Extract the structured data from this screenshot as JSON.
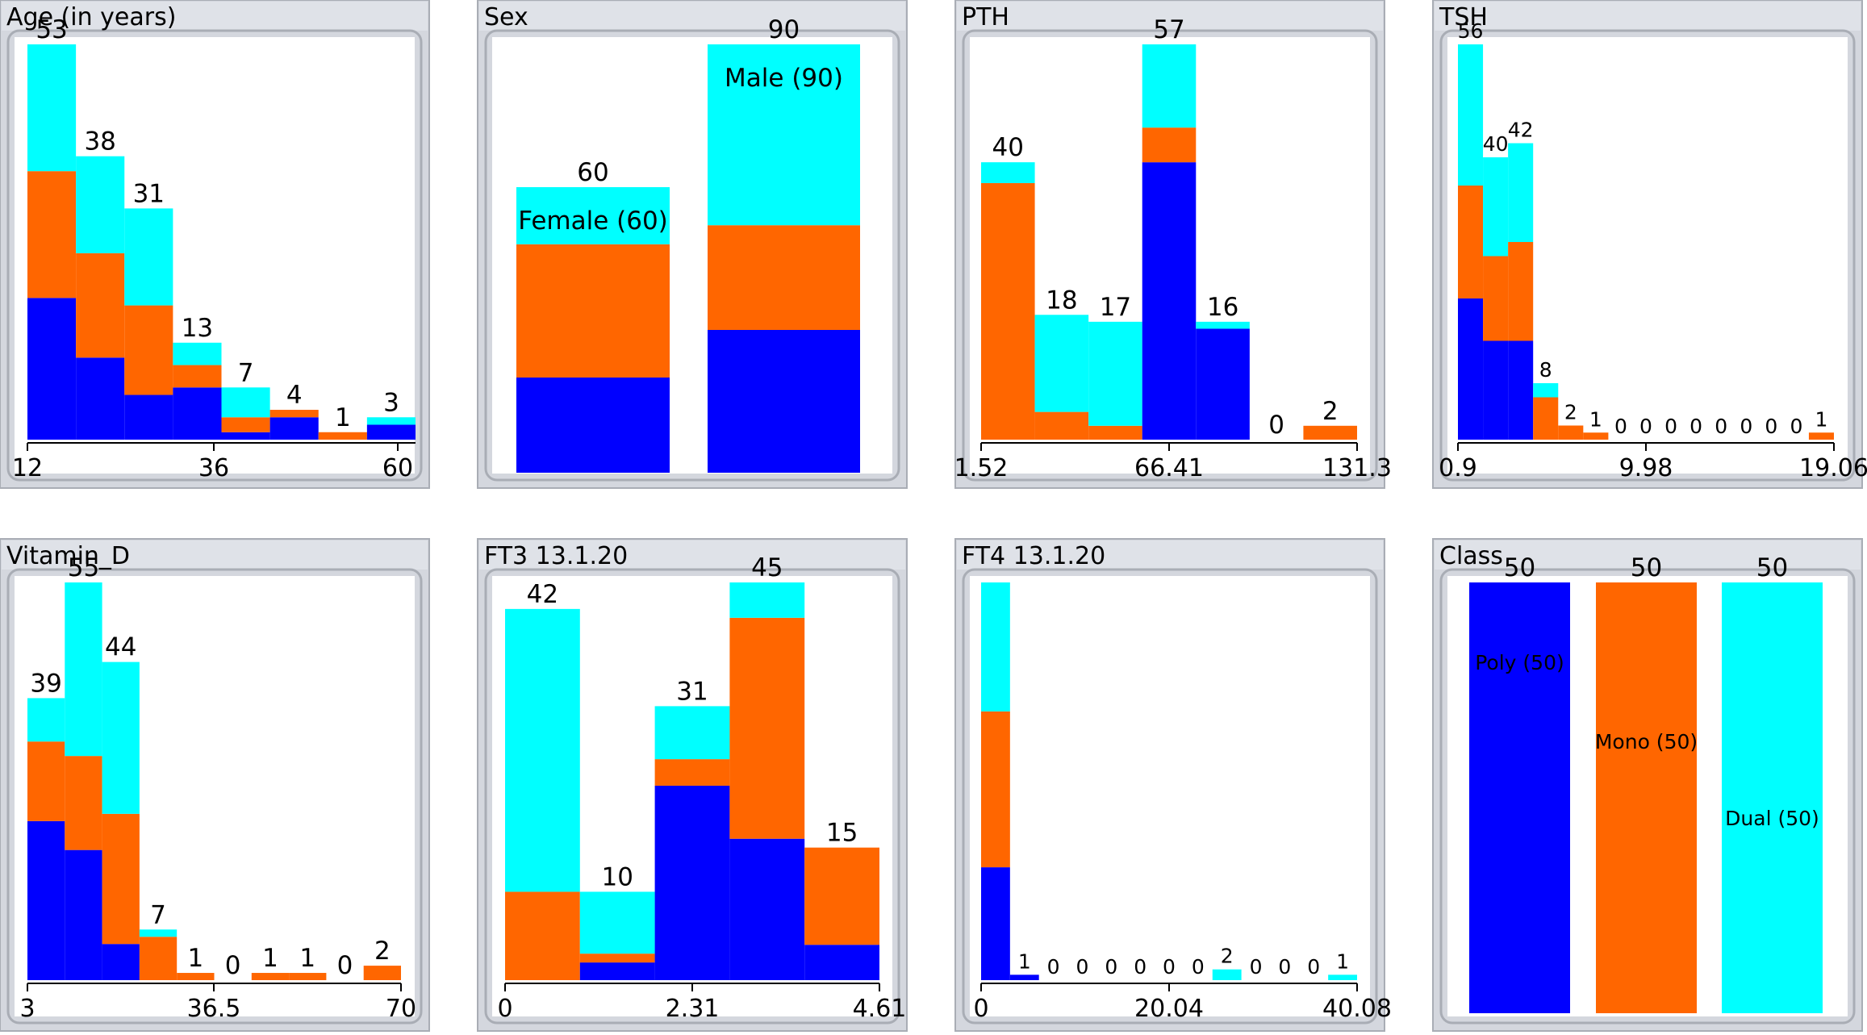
{
  "colors": {
    "series": [
      "#0000ff",
      "#ff6600",
      "#00ffff"
    ],
    "frame": "#d4d7de",
    "frame_border": "#a9adb5",
    "plot_bg": "#ffffff"
  },
  "chart_data": [
    {
      "type": "bar",
      "title": "Age (in years)",
      "xticks": [
        "12",
        "36",
        "60"
      ],
      "counts": [
        "53",
        "38",
        "31",
        "13",
        "7",
        "4",
        "1",
        "3"
      ],
      "stacks": [
        [
          19,
          17,
          17
        ],
        [
          11,
          14,
          13
        ],
        [
          6,
          12,
          13
        ],
        [
          7,
          3,
          3
        ],
        [
          1,
          2,
          4
        ],
        [
          3,
          1,
          0
        ],
        [
          0,
          1,
          0
        ],
        [
          2,
          0,
          1
        ]
      ],
      "ymax": 53
    },
    {
      "type": "bar",
      "title": "Sex",
      "categorical": true,
      "counts": [
        "60",
        "90"
      ],
      "labels": [
        "Female (60)",
        "Male (90)"
      ],
      "stacks": [
        [
          20,
          28,
          12
        ],
        [
          30,
          22,
          38
        ]
      ],
      "ymax": 90
    },
    {
      "type": "bar",
      "title": "PTH",
      "xticks": [
        "1.52",
        "66.41",
        "131.3"
      ],
      "counts": [
        "40",
        "18",
        "17",
        "57",
        "16",
        "0",
        "2"
      ],
      "stacks": [
        [
          0,
          37,
          3
        ],
        [
          0,
          4,
          14
        ],
        [
          0,
          2,
          15
        ],
        [
          40,
          5,
          12
        ],
        [
          16,
          0,
          1
        ],
        [
          0,
          0,
          0
        ],
        [
          0,
          2,
          0
        ]
      ],
      "ymax": 57
    },
    {
      "type": "bar",
      "title": "TSH",
      "small": true,
      "xticks": [
        "0.9",
        "9.98",
        "19.06"
      ],
      "counts": [
        "56",
        "40",
        "42",
        "8",
        "2",
        "1",
        "0",
        "0",
        "0",
        "0",
        "0",
        "0",
        "0",
        "0",
        "1"
      ],
      "stacks": [
        [
          20,
          16,
          20
        ],
        [
          14,
          12,
          14
        ],
        [
          14,
          14,
          14
        ],
        [
          0,
          6,
          2
        ],
        [
          0,
          2,
          0
        ],
        [
          0,
          1,
          0
        ],
        [
          0,
          0,
          0
        ],
        [
          0,
          0,
          0
        ],
        [
          0,
          0,
          0
        ],
        [
          0,
          0,
          0
        ],
        [
          0,
          0,
          0
        ],
        [
          0,
          0,
          0
        ],
        [
          0,
          0,
          0
        ],
        [
          0,
          0,
          0
        ],
        [
          0,
          1,
          0
        ]
      ],
      "ymax": 56
    },
    {
      "type": "bar",
      "title": "Vitamin_D",
      "xticks": [
        "3",
        "36.5",
        "70"
      ],
      "counts": [
        "39",
        "55",
        "44",
        "7",
        "1",
        "0",
        "1",
        "1",
        "0",
        "2"
      ],
      "stacks": [
        [
          22,
          11,
          6
        ],
        [
          18,
          13,
          24
        ],
        [
          5,
          18,
          21
        ],
        [
          0,
          6,
          1
        ],
        [
          0,
          1,
          0
        ],
        [
          0,
          0,
          0
        ],
        [
          0,
          1,
          0
        ],
        [
          0,
          1,
          0
        ],
        [
          0,
          0,
          0
        ],
        [
          0,
          2,
          0
        ]
      ],
      "ymax": 55
    },
    {
      "type": "bar",
      "title": "FT3 13.1.20",
      "xticks": [
        "0",
        "2.31",
        "4.61"
      ],
      "counts": [
        "42",
        "10",
        "31",
        "45",
        "15"
      ],
      "stacks": [
        [
          0,
          10,
          32
        ],
        [
          2,
          1,
          7
        ],
        [
          22,
          3,
          6
        ],
        [
          16,
          25,
          4
        ],
        [
          4,
          11,
          0
        ]
      ],
      "ymax": 45
    },
    {
      "type": "bar",
      "title": "FT4 13.1.20",
      "small": true,
      "xticks": [
        "0",
        "20.04",
        "40.08"
      ],
      "counts": [
        "",
        "1",
        "0",
        "0",
        "0",
        "0",
        "0",
        "0",
        "2",
        "0",
        "0",
        "0",
        "1"
      ],
      "stacks": [
        [
          21,
          29,
          24
        ],
        [
          1,
          0,
          0
        ],
        [
          0,
          0,
          0
        ],
        [
          0,
          0,
          0
        ],
        [
          0,
          0,
          0
        ],
        [
          0,
          0,
          0
        ],
        [
          0,
          0,
          0
        ],
        [
          0,
          0,
          0
        ],
        [
          0,
          0,
          2
        ],
        [
          0,
          0,
          0
        ],
        [
          0,
          0,
          0
        ],
        [
          0,
          0,
          0
        ],
        [
          0,
          0,
          1
        ]
      ],
      "ymax": 74
    },
    {
      "type": "bar",
      "title": "Class",
      "categorical": true,
      "class_chart": true,
      "counts": [
        "50",
        "50",
        "50"
      ],
      "labels": [
        "Poly (50)",
        "Mono (50)",
        "Dual (50)"
      ],
      "stacks": [
        [
          50,
          0,
          0
        ],
        [
          0,
          50,
          0
        ],
        [
          0,
          0,
          50
        ]
      ],
      "ymax": 50
    }
  ]
}
